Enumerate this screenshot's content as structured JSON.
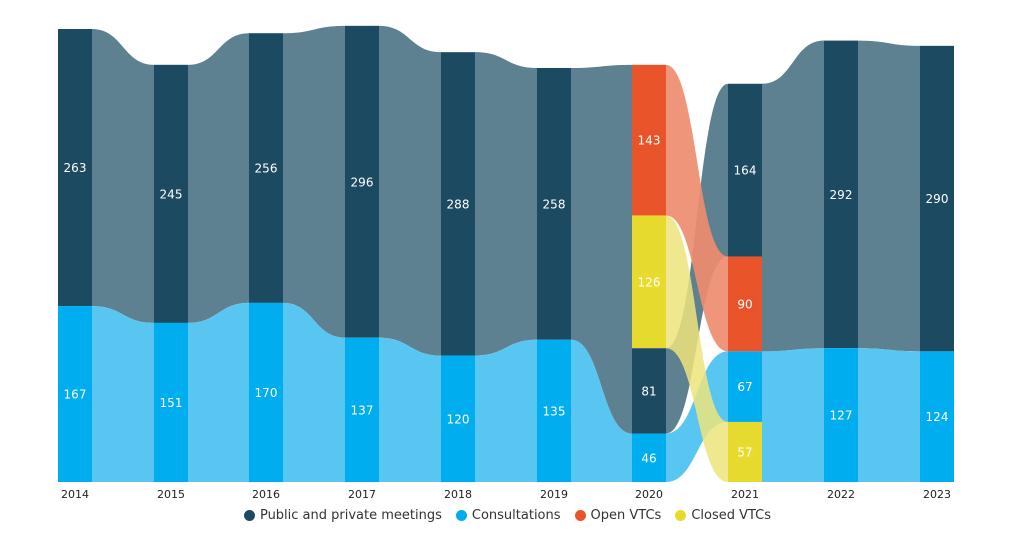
{
  "chart_data": {
    "type": "sankey",
    "categories": [
      "2014",
      "2015",
      "2016",
      "2017",
      "2018",
      "2019",
      "2020",
      "2021",
      "2022",
      "2023"
    ],
    "series": [
      {
        "name": "Public and private meetings",
        "color": "#1b4a61",
        "flow_color": "#5e8191",
        "values": [
          263,
          245,
          256,
          296,
          288,
          258,
          81,
          164,
          292,
          290
        ]
      },
      {
        "name": "Consultations",
        "color": "#00adee",
        "flow_color": "#59c6f2",
        "values": [
          167,
          151,
          170,
          137,
          120,
          135,
          46,
          67,
          127,
          124
        ]
      },
      {
        "name": "Open VTCs",
        "color": "#e9542a",
        "flow_color": "#ee8c6f",
        "values": [
          null,
          null,
          null,
          null,
          null,
          null,
          143,
          90,
          null,
          null
        ]
      },
      {
        "name": "Closed VTCs",
        "color": "#e6da2e",
        "flow_color": "#ede47a",
        "values": [
          null,
          null,
          null,
          null,
          null,
          null,
          126,
          57,
          null,
          null
        ]
      }
    ],
    "stack_order": {
      "2020": [
        "Open VTCs",
        "Closed VTCs",
        "Public and private meetings",
        "Consultations"
      ],
      "2021": [
        "Public and private meetings",
        "Open VTCs",
        "Consultations",
        "Closed VTCs"
      ]
    }
  },
  "legend": {
    "items": [
      {
        "label": "Public and private meetings",
        "color": "#1b4a61"
      },
      {
        "label": "Consultations",
        "color": "#00adee"
      },
      {
        "label": "Open VTCs",
        "color": "#e9542a"
      },
      {
        "label": "Closed VTCs",
        "color": "#e6da2e"
      }
    ]
  }
}
